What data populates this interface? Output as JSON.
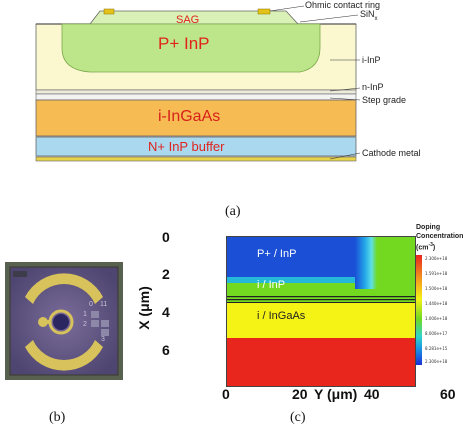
{
  "panel_a": {
    "labels": {
      "ohmic": "Ohmic contact ring",
      "sin": "SiN",
      "sin_sub": "x",
      "iinp": "i-InP",
      "ninp": "n-InP",
      "step": "Step grade",
      "cathode": "Cathode metal"
    },
    "regions": {
      "sag": "SAG",
      "pinp": "P+ InP",
      "ingaas": "i-InGaAs",
      "buffer": "N+ InP buffer"
    },
    "caption": "(a)"
  },
  "panel_b": {
    "caption": "(b)",
    "chip_marks": [
      "0",
      "11",
      "1",
      "2",
      "3"
    ]
  },
  "panel_c": {
    "caption": "(c)",
    "xaxis_label": "X (μm)",
    "xaxis_ticks": [
      "0",
      "2",
      "4",
      "6"
    ],
    "yaxis_label": "Y (μm)",
    "yaxis_ticks": [
      "0",
      "20",
      "40",
      "60"
    ],
    "regions": {
      "pinp": "P+ / InP",
      "iinp": "i / InP",
      "ingaas": "i / InGaAs"
    },
    "legend": {
      "title_line1": "Doping",
      "title_line2": "Concentration",
      "unit": "(cm",
      "unit_sup": "-3",
      "unit_close": ")",
      "values": [
        "2.300e+18",
        "1.591e+18",
        "1.500e+18",
        "1.440e+18",
        "1.000e+18",
        "8.000e+17",
        "8.281e+15",
        "2.300e+18"
      ]
    },
    "colors": {
      "red": "#e8261e",
      "yellow": "#f5f216",
      "green": "#72d820",
      "blue": "#1a4fd6"
    }
  }
}
